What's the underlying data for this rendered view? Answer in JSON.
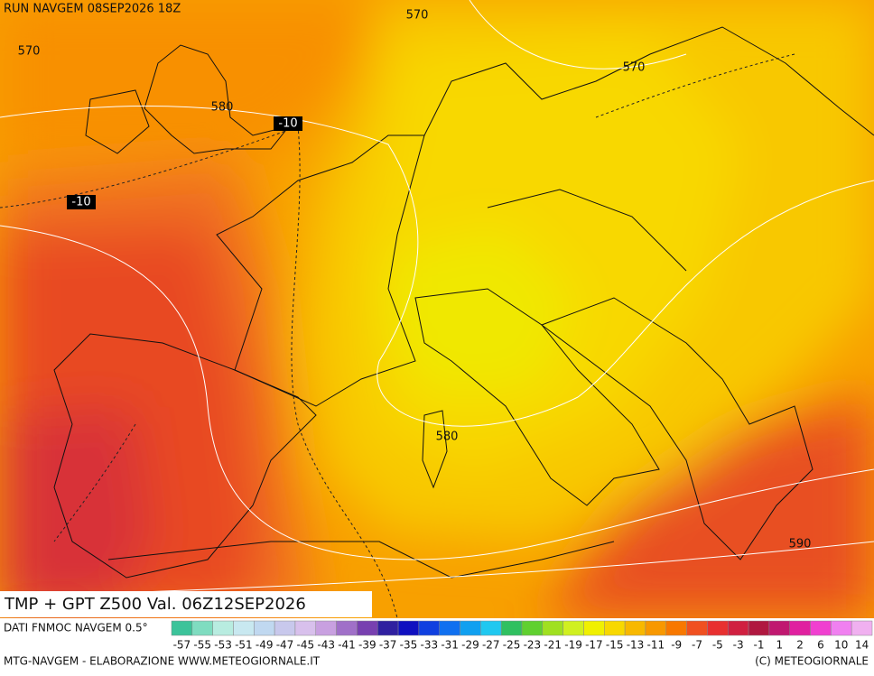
{
  "header": {
    "run": "RUN NAVGEM 08SEP2026 18Z"
  },
  "map": {
    "contour_labels": [
      "570",
      "570",
      "570",
      "580",
      "-10",
      "-10",
      "580",
      "590"
    ]
  },
  "title": "TMP + GPT Z500 Val. 06Z12SEP2026",
  "legend": {
    "source": "DATI FNMOC NAVGEM 0.5°",
    "colors": [
      "#3cc39a",
      "#7fdcc0",
      "#b8ece0",
      "#c8e8f0",
      "#c0d8f0",
      "#c8c8ec",
      "#d8c0ec",
      "#c8a0e0",
      "#a070c8",
      "#7840b0",
      "#3020a0",
      "#1010c0",
      "#1040e0",
      "#1070f0",
      "#10a0f0",
      "#20c8f0",
      "#30c060",
      "#60d030",
      "#a0e020",
      "#d0f020",
      "#f0f000",
      "#f8d800",
      "#f8b800",
      "#f89800",
      "#f87800",
      "#f05020",
      "#e83030",
      "#d02040",
      "#b01840",
      "#c01870",
      "#e020a0",
      "#f040d0",
      "#f080f0",
      "#f0b0f0"
    ],
    "labels": [
      "-57",
      "-55",
      "-53",
      "-51",
      "-49",
      "-47",
      "-45",
      "-43",
      "-41",
      "-39",
      "-37",
      "-35",
      "-33",
      "-31",
      "-29",
      "-27",
      "-25",
      "-23",
      "-21",
      "-19",
      "-17",
      "-15",
      "-13",
      "-11",
      "-9",
      "-7",
      "-5",
      "-3",
      "-1",
      "1",
      "2",
      "6",
      "10",
      "14"
    ]
  },
  "footer": {
    "left": "MTG-NAVGEM - ELABORAZIONE WWW.METEOGIORNALE.IT",
    "right": "(C) METEOGIORNALE"
  }
}
